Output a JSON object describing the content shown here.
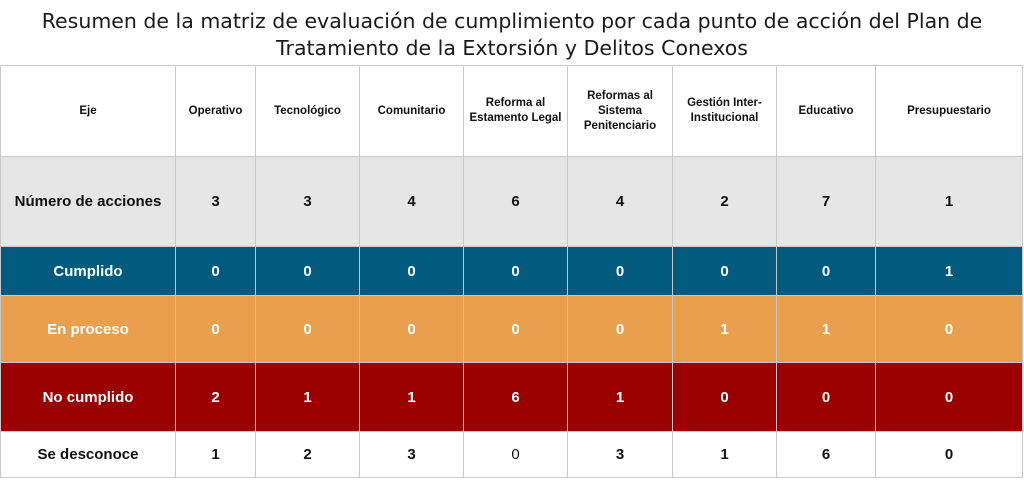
{
  "title": {
    "line1": "Resumen de la matriz de evaluación de cumplimiento por cada punto de acción del Plan de",
    "line2": "Tratamiento de la Extorsión y Delitos Conexos"
  },
  "header": [
    "Eje",
    "Operativo",
    "Tecnológico",
    "Comunitario",
    "Reforma al Estamento Legal",
    "Reformas al Sistema Penitenciario",
    "Gestión Inter-Institucional",
    "Educativo",
    "Presupuestario"
  ],
  "rows": {
    "numero": {
      "label": "Número de acciones",
      "values": [
        "3",
        "3",
        "4",
        "6",
        "4",
        "2",
        "7",
        "1"
      ]
    },
    "cumplido": {
      "label": "Cumplido",
      "values": [
        "0",
        "0",
        "0",
        "0",
        "0",
        "0",
        "0",
        "1"
      ]
    },
    "en_proceso": {
      "label": "En proceso",
      "values": [
        "0",
        "0",
        "0",
        "0",
        "0",
        "1",
        "1",
        "0"
      ]
    },
    "no_cumplido": {
      "label": "No cumplido",
      "values": [
        "2",
        "1",
        "1",
        "6",
        "1",
        "0",
        "0",
        "0"
      ]
    },
    "se_desconoce": {
      "label": "Se desconoce",
      "values": [
        "1",
        "2",
        "3",
        "0",
        "3",
        "1",
        "6",
        "0"
      ]
    }
  },
  "colors": {
    "numero": "#e6e6e6",
    "cumplido": "#015b7e",
    "en_proceso": "#e99f4d",
    "no_cumplido": "#9b0000",
    "se_desconoce": "#ffffff"
  }
}
